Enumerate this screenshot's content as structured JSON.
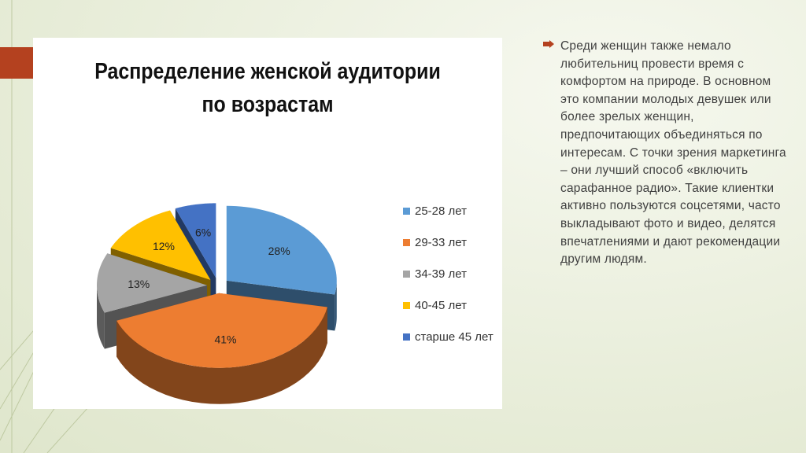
{
  "slide": {
    "body_text": "Среди женщин также немало любительниц провести время с комфортом на природе. В основном это компании молодых девушек или более зрелых женщин, предпочитающих объединяться по интересам. С точки зрения маркетинга – они лучший способ «включить сарафанное радио». Такие клиентки активно пользуются соцсетями, часто выкладывают фото и видео, делятся впечатлениями и дают рекомендации другим людям.",
    "colors": {
      "accent": "#b4411f",
      "bullet": "#b4411f",
      "background": "#e9eedb"
    }
  },
  "chart_data": {
    "type": "pie",
    "title_line1": "Распределение женской аудитории",
    "title_line2": "по возрастам",
    "legend_position": "right",
    "slices": [
      {
        "label": "25-28 лет",
        "value": 28,
        "display": "28%",
        "color": "#5b9bd5"
      },
      {
        "label": "29-33 лет",
        "value": 41,
        "display": "41%",
        "color": "#ed7d31"
      },
      {
        "label": "34-39 лет",
        "value": 13,
        "display": "13%",
        "color": "#a5a5a5"
      },
      {
        "label": "40-45 лет",
        "value": 12,
        "display": "12%",
        "color": "#ffc000"
      },
      {
        "label": "старше 45 лет",
        "value": 6,
        "display": "6%",
        "color": "#4472c4"
      }
    ]
  }
}
